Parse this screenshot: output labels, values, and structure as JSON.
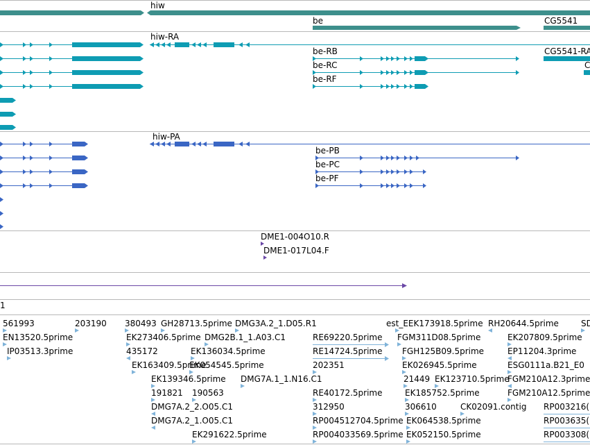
{
  "colors": {
    "gene": "#3d8f8c",
    "transcript": "#0e9cb3",
    "protein": "#3a66c4",
    "marker": "#6a47a6",
    "est": "#7fb3d9",
    "separator": "#b8b8b8"
  },
  "genes": {
    "hiw": "hiw",
    "be": "be",
    "cg5541": "CG5541"
  },
  "transcripts": {
    "hiw_ra": "hiw-RA",
    "be_rb": "be-RB",
    "be_rc": "be-RC",
    "be_rf": "be-RF",
    "cg5541_ra": "CG5541-RA",
    "cut_c": "C"
  },
  "proteins": {
    "hiw_pa": "hiw-PA",
    "be_pb": "be-PB",
    "be_pc": "be-PC",
    "be_pf": "be-PF"
  },
  "markers": {
    "m1": "DME1-004O10.R",
    "m2": "DME1-017L04.F"
  },
  "clone_label": "1",
  "ests": {
    "e561993": "561993",
    "e203190": "203190",
    "e380493": "380493",
    "gh28713": "GH28713.5prime",
    "dmg3a2": "DMG3A.2_1.D05.R1",
    "est_eek": "est_EEK173918.5prime",
    "rh20644": "RH20644.5prime",
    "sd_cut": "SD",
    "en13520": "EN13520.5prime",
    "ek273406": "EK273406.5prime",
    "dmg2b": "DMG2B.1_1.A03.C1",
    "re69220": "RE69220.5prime",
    "fgm311": "FGM311D08.5prime",
    "ek207809": "EK207809.5prime",
    "ip03513": "IP03513.3prime",
    "e435172": "435172",
    "ek136034": "EK136034.5prime",
    "re14724": "RE14724.5prime",
    "fgh125": "FGH125B09.5prime",
    "ep11204": "EP11204.3prime",
    "ek163409": "EK163409.5prime",
    "ek054545": "EK054545.5prime",
    "e202351": "202351",
    "ek026945": "EK026945.5prime",
    "esg0111": "ESG0111a.B21_E0",
    "ek139346": "EK139346.5prime",
    "dmg7a1n16": "DMG7A.1_1.N16.C1",
    "e21449": "21449",
    "ek123710": "EK123710.5prime",
    "fgm210a12_3": "FGM210A12.3prime",
    "e191821": "191821",
    "e190563": "190563",
    "re40172": "RE40172.5prime",
    "ek185752": "EK185752.5prime",
    "fgm210a12_5": "FGM210A12.5prime",
    "dmg7a2o05_2": "DMG7A.2_2.O05.C1",
    "e312950": "312950",
    "e306610": "306610",
    "ck02091": "CK02091.contig",
    "rp0032169": "RP003216(",
    "dmg7a2o05_1": "DMG7A.2_1.O05.C1",
    "rp004512704": "RP004512704.5prime",
    "ek064538": "EK064538.5prime",
    "rp0036350": "RP003635(",
    "ek291622": "EK291622.5prime",
    "rp004033569": "RP004033569.5prime",
    "ek052150": "EK052150.5prime",
    "rp0033087": "RP003308("
  }
}
